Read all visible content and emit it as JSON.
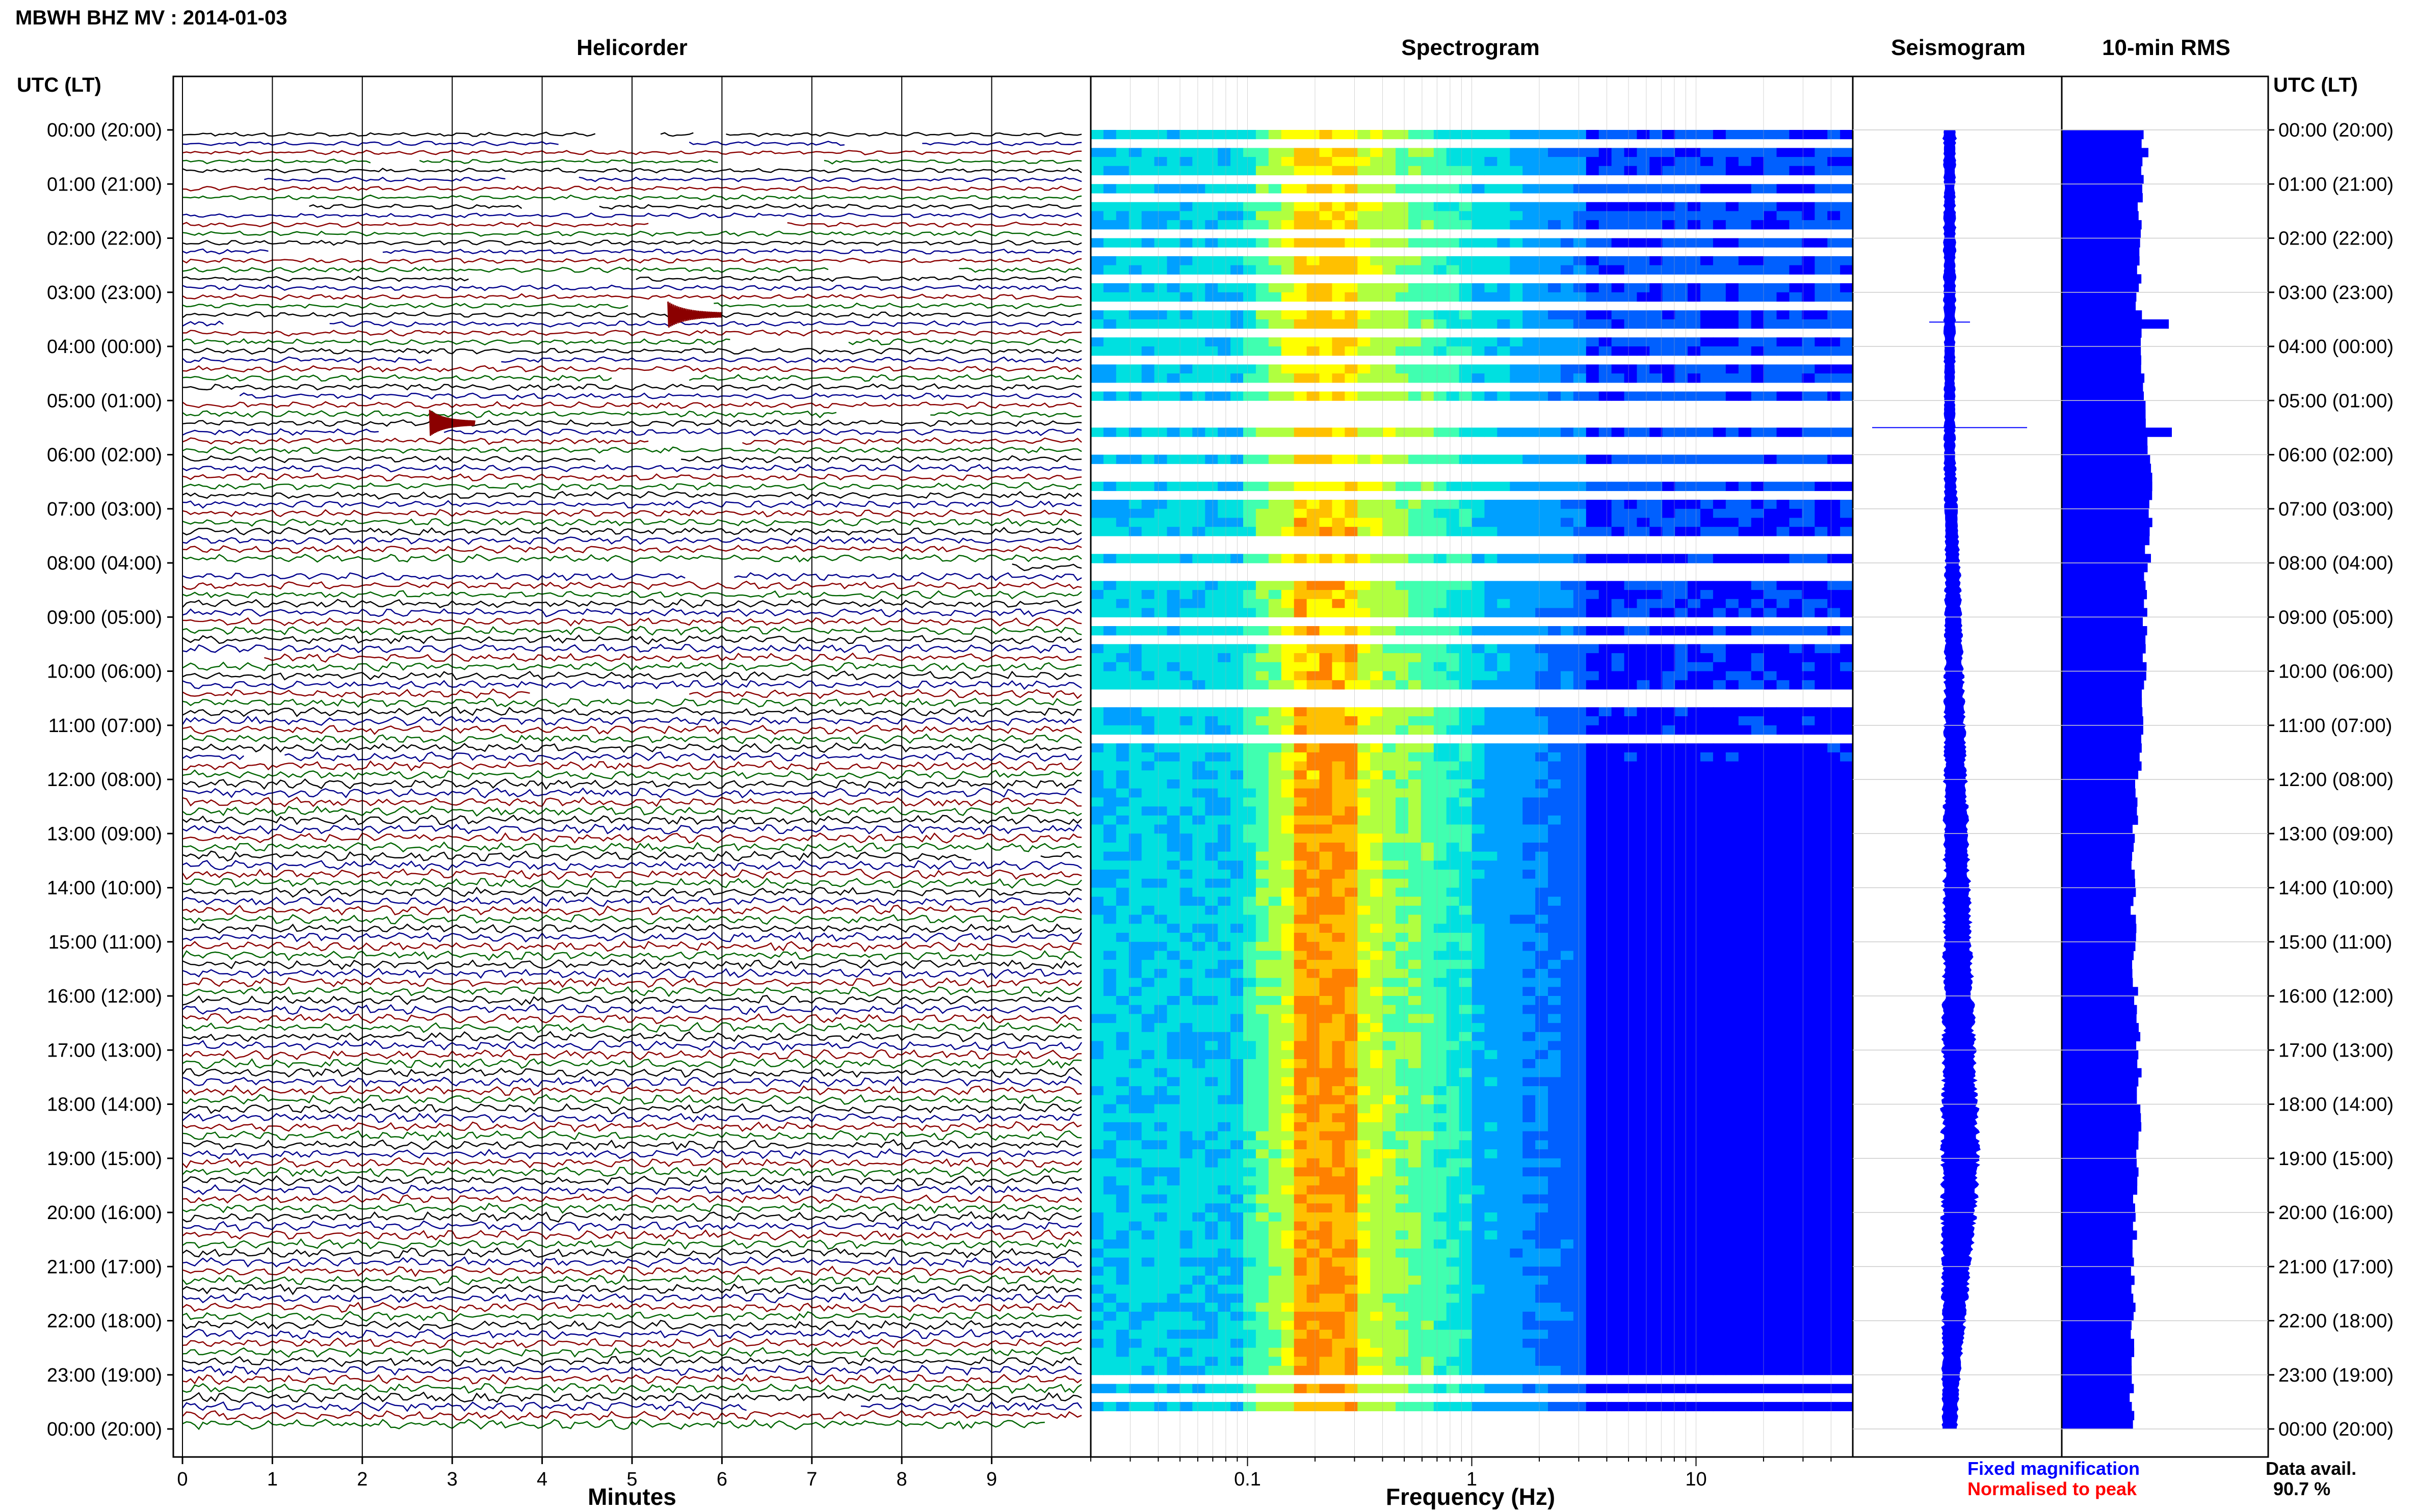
{
  "title": "MBWH BHZ MV : 2014-01-03",
  "hour_axis_label": "UTC (LT)",
  "hour_labels": [
    "00:00 (20:00)",
    "01:00 (21:00)",
    "02:00 (22:00)",
    "03:00 (23:00)",
    "04:00 (00:00)",
    "05:00 (01:00)",
    "06:00 (02:00)",
    "07:00 (03:00)",
    "08:00 (04:00)",
    "09:00 (05:00)",
    "10:00 (06:00)",
    "11:00 (07:00)",
    "12:00 (08:00)",
    "13:00 (09:00)",
    "14:00 (10:00)",
    "15:00 (11:00)",
    "16:00 (12:00)",
    "17:00 (13:00)",
    "18:00 (14:00)",
    "19:00 (15:00)",
    "20:00 (16:00)",
    "21:00 (17:00)",
    "22:00 (18:00)",
    "23:00 (19:00)",
    "00:00 (20:00)"
  ],
  "legend": {
    "fixed": "Fixed magnification",
    "normalised": "Normalised to peak"
  },
  "data_availability": {
    "label": "Data avail.",
    "value": "90.7 %"
  },
  "colors": {
    "trace_cycle": [
      "#000000",
      "#00008b",
      "#8b0000",
      "#006400"
    ],
    "blue": "#0000ff",
    "red": "#ff0000"
  },
  "chart_data": [
    {
      "type": "line",
      "panel": "helicorder",
      "title": "Helicorder",
      "xlabel": "Minutes",
      "xticks": [
        0,
        1,
        2,
        3,
        4,
        5,
        6,
        7,
        8,
        9
      ],
      "xlim": [
        0,
        10
      ],
      "rows": 144,
      "row_duration_min": 10,
      "gaps": [
        {
          "row": 0,
          "from": 4.6,
          "to": 5.3
        },
        {
          "row": 0,
          "from": 5.7,
          "to": 6.0
        },
        {
          "row": 1,
          "from": 4.2,
          "to": 5.6
        },
        {
          "row": 1,
          "from": 7.4,
          "to": 8.2
        },
        {
          "row": 3,
          "from": 2.1,
          "to": 2.6
        },
        {
          "row": 3,
          "from": 6.0,
          "to": 7.1
        },
        {
          "row": 5,
          "from": 0,
          "to": 0.9
        },
        {
          "row": 5,
          "from": 3.6,
          "to": 4.4
        },
        {
          "row": 8,
          "from": 0,
          "to": 1.4
        },
        {
          "row": 8,
          "from": 3.8,
          "to": 4.6
        },
        {
          "row": 10,
          "from": 5.2,
          "to": 6.7
        },
        {
          "row": 13,
          "from": 1.0,
          "to": 2.2
        },
        {
          "row": 15,
          "from": 7.2,
          "to": 8.6
        },
        {
          "row": 16,
          "from": 3.2,
          "to": 5.0
        },
        {
          "row": 19,
          "from": 5.0,
          "to": 5.9
        },
        {
          "row": 21,
          "from": 0.5,
          "to": 1.6
        },
        {
          "row": 23,
          "from": 6.1,
          "to": 7.4
        },
        {
          "row": 25,
          "from": 2.8,
          "to": 3.5
        },
        {
          "row": 27,
          "from": 4.8,
          "to": 5.6
        },
        {
          "row": 29,
          "from": 0,
          "to": 0.6
        },
        {
          "row": 31,
          "from": 7.3,
          "to": 8.3
        },
        {
          "row": 33,
          "from": 2.2,
          "to": 2.9
        },
        {
          "row": 34,
          "from": 5.2,
          "to": 6.2
        },
        {
          "row": 36,
          "from": 4.6,
          "to": 5.5
        },
        {
          "row": 48,
          "from": 0,
          "to": 9.2
        },
        {
          "row": 49,
          "from": 5.6,
          "to": 6.1
        },
        {
          "row": 58,
          "from": 0,
          "to": 0.9
        },
        {
          "row": 62,
          "from": 3.9,
          "to": 5.6
        },
        {
          "row": 69,
          "from": 0.7,
          "to": 1.1
        },
        {
          "row": 80,
          "from": 8.8,
          "to": 9.5
        },
        {
          "row": 141,
          "from": 6.3,
          "to": 7.5
        },
        {
          "row": 143,
          "from": 9.6,
          "to": 10
        }
      ],
      "events": [
        {
          "row": 20,
          "minute": 5.4,
          "duration_min": 0.6,
          "label": ""
        },
        {
          "row": 32,
          "minute": 2.75,
          "duration_min": 0.5,
          "label": ""
        }
      ]
    },
    {
      "type": "heatmap",
      "panel": "spectrogram",
      "title": "Spectrogram",
      "xlabel": "Frequency (Hz)",
      "xscale": "log",
      "xlim": [
        0.02,
        50
      ],
      "xticks": [
        0.1,
        1,
        10
      ],
      "colormap": [
        "#0000a0",
        "#0000ff",
        "#0060ff",
        "#00a0ff",
        "#00e0e0",
        "#40ffb0",
        "#b0ff40",
        "#ffff00",
        "#ffc000",
        "#ff8000"
      ],
      "peak_band_hz": [
        0.17,
        0.32
      ],
      "white_gap_hours": [
        0.2,
        0.9,
        1.1,
        1.9,
        2.2,
        2.6,
        3.2,
        3.6,
        4.2,
        4.6,
        5.0,
        5.2,
        5.4,
        5.6,
        5.75,
        6.1,
        6.3,
        6.7,
        7.5,
        7.7,
        8.0,
        8.1,
        9.0,
        9.4,
        10.3,
        10.5,
        11.2,
        23.0,
        23.3,
        23.6,
        23.9
      ],
      "blank_hours": [
        0,
        24
      ]
    },
    {
      "type": "line",
      "panel": "seismogram",
      "title": "Seismogram",
      "hours": [
        0,
        1,
        2,
        3,
        4,
        5,
        6,
        7,
        8,
        9,
        10,
        11,
        12,
        13,
        14,
        15,
        16,
        17,
        18,
        19,
        20,
        21,
        22,
        23,
        24
      ],
      "amplitude": [
        0.35,
        0.3,
        0.32,
        0.33,
        0.3,
        0.28,
        0.3,
        0.34,
        0.4,
        0.45,
        0.5,
        0.55,
        0.6,
        0.66,
        0.7,
        0.75,
        0.82,
        0.88,
        0.95,
        1.0,
        0.92,
        0.78,
        0.62,
        0.48,
        0.4
      ],
      "offset": [
        0,
        0,
        0,
        0,
        0,
        0,
        0,
        0.02,
        0.04,
        0.05,
        0.06,
        0.07,
        0.08,
        0.09,
        0.1,
        0.11,
        0.12,
        0.13,
        0.14,
        0.15,
        0.13,
        0.09,
        0.06,
        0.02,
        0
      ],
      "spikes": [
        {
          "hour": 3.55,
          "width": 1.0
        },
        {
          "hour": 5.5,
          "width": 3.8
        }
      ]
    },
    {
      "type": "bar",
      "panel": "rms",
      "title": "10-min RMS",
      "orientation": "horizontal",
      "bins": 144,
      "base": [
        0.8,
        0.78,
        0.76,
        0.75,
        0.78,
        0.82,
        0.85,
        0.86,
        0.84,
        0.82,
        0.8,
        0.78,
        0.74,
        0.71,
        0.7,
        0.71,
        0.73,
        0.75,
        0.76,
        0.74,
        0.72,
        0.7,
        0.7,
        0.7,
        0.68
      ],
      "spikes": [
        {
          "bin": 21,
          "value": 1.05
        },
        {
          "bin": 33,
          "value": 1.08
        },
        {
          "bin": 25,
          "value": 0.78
        },
        {
          "bin": 2,
          "value": 0.85
        }
      ]
    }
  ]
}
